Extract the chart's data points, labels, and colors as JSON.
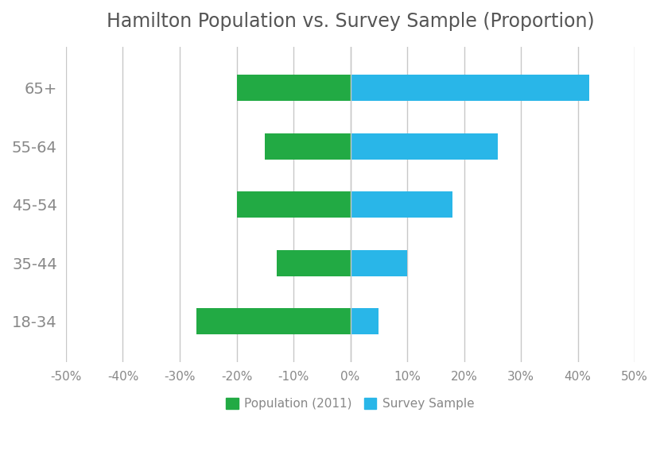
{
  "title": "Hamilton Population vs. Survey Sample (Proportion)",
  "categories": [
    "18-34",
    "35-44",
    "45-54",
    "55-64",
    "65+"
  ],
  "population": [
    -27,
    -13,
    -20,
    -15,
    -20
  ],
  "survey": [
    5,
    10,
    18,
    26,
    42
  ],
  "population_color": "#22aa44",
  "survey_color": "#29b6e8",
  "background_color": "#ffffff",
  "grid_color": "#c8c8c8",
  "title_color": "#555555",
  "tick_label_color": "#888888",
  "xlim": [
    -50,
    50
  ],
  "xticks": [
    -50,
    -40,
    -30,
    -20,
    -10,
    0,
    10,
    20,
    30,
    40,
    50
  ],
  "xtick_labels": [
    "-50%",
    "-40%",
    "-30%",
    "-20%",
    "-10%",
    "0%",
    "10%",
    "20%",
    "30%",
    "40%",
    "50%"
  ],
  "bar_height": 0.45,
  "legend_labels": [
    "Population (2011)",
    "Survey Sample"
  ],
  "title_fontsize": 17,
  "tick_fontsize": 11,
  "legend_fontsize": 11,
  "ytick_fontsize": 14
}
